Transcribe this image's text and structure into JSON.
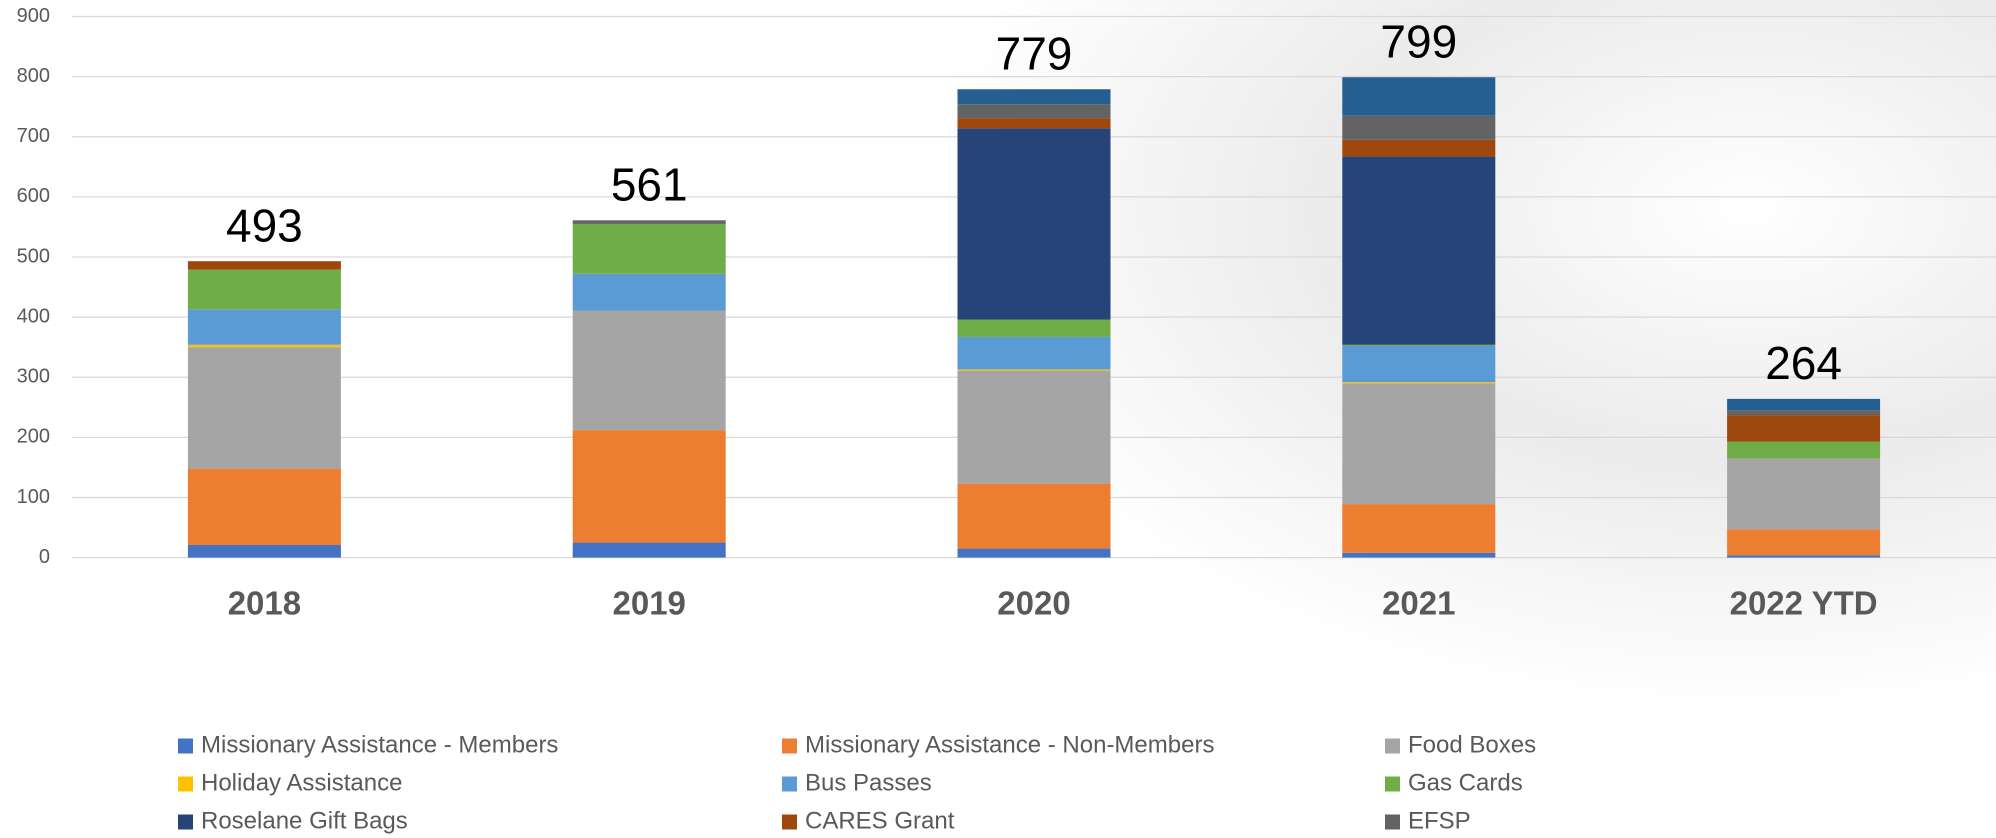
{
  "chart_data": {
    "type": "stacked_bar",
    "categories": [
      "2018",
      "2019",
      "2020",
      "2021",
      "2022 YTD"
    ],
    "totals": [
      493,
      561,
      779,
      799,
      264
    ],
    "series": [
      {
        "name": "Missionary Assistance - Members",
        "color": "#4472c4",
        "values": [
          21,
          25,
          15,
          8,
          4
        ]
      },
      {
        "name": "Missionary Assistance - Non-Members",
        "color": "#ed7d31",
        "values": [
          127,
          187,
          108,
          81,
          43
        ]
      },
      {
        "name": "Food Boxes",
        "color": "#a5a5a5",
        "values": [
          202,
          199,
          188,
          201,
          118
        ]
      },
      {
        "name": "Holiday Assistance",
        "color": "#ffc000",
        "values": [
          4,
          0,
          2,
          2,
          0
        ]
      },
      {
        "name": "Bus Passes",
        "color": "#5b9bd5",
        "values": [
          59,
          61,
          54,
          60,
          0
        ]
      },
      {
        "name": "Gas Cards",
        "color": "#70ad47",
        "values": [
          66,
          83,
          29,
          2,
          28
        ]
      },
      {
        "name": "Roselane Gift Bags",
        "color": "#264478",
        "values": [
          0,
          0,
          318,
          313,
          0
        ]
      },
      {
        "name": "CARES Grant",
        "color": "#9e480e",
        "values": [
          14,
          0,
          17,
          28,
          44
        ]
      },
      {
        "name": "EFSP",
        "color": "#636363",
        "values": [
          0,
          6,
          23,
          40,
          8
        ]
      },
      {
        "color": "#255e91",
        "values": [
          0,
          0,
          25,
          64,
          19
        ]
      }
    ],
    "ylim": [
      0,
      900
    ],
    "yticks": [
      0,
      100,
      200,
      300,
      400,
      500,
      600,
      700,
      800,
      900
    ],
    "grid": true
  }
}
